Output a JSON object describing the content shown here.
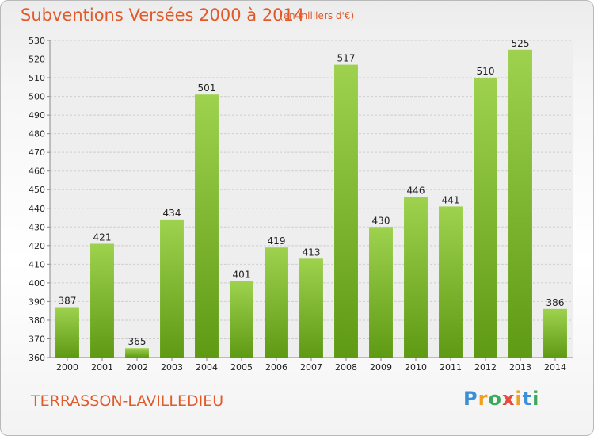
{
  "chart_data": {
    "type": "bar",
    "title": "Subventions Versées 2000 à 2014",
    "subtitle": "(en milliers d'€)",
    "categories": [
      "2000",
      "2001",
      "2002",
      "2003",
      "2004",
      "2005",
      "2006",
      "2007",
      "2008",
      "2009",
      "2010",
      "2011",
      "2012",
      "2013",
      "2014"
    ],
    "values": [
      387,
      421,
      365,
      434,
      501,
      401,
      419,
      413,
      517,
      430,
      446,
      441,
      510,
      525,
      386
    ],
    "ylim": [
      360,
      530
    ],
    "ytick_step": 10,
    "grid": true,
    "bar_color": "#7ab82a"
  },
  "footer": {
    "commune": "TERRASSON-LAVILLEDIEU",
    "logo": {
      "letters": [
        "P",
        "r",
        "o",
        "x",
        "i",
        "t",
        "i"
      ],
      "colors": [
        "#3a8fd6",
        "#f0a020",
        "#3ca85c",
        "#e84a3c",
        "#f0a020",
        "#3a8fd6",
        "#3ca85c"
      ]
    }
  }
}
